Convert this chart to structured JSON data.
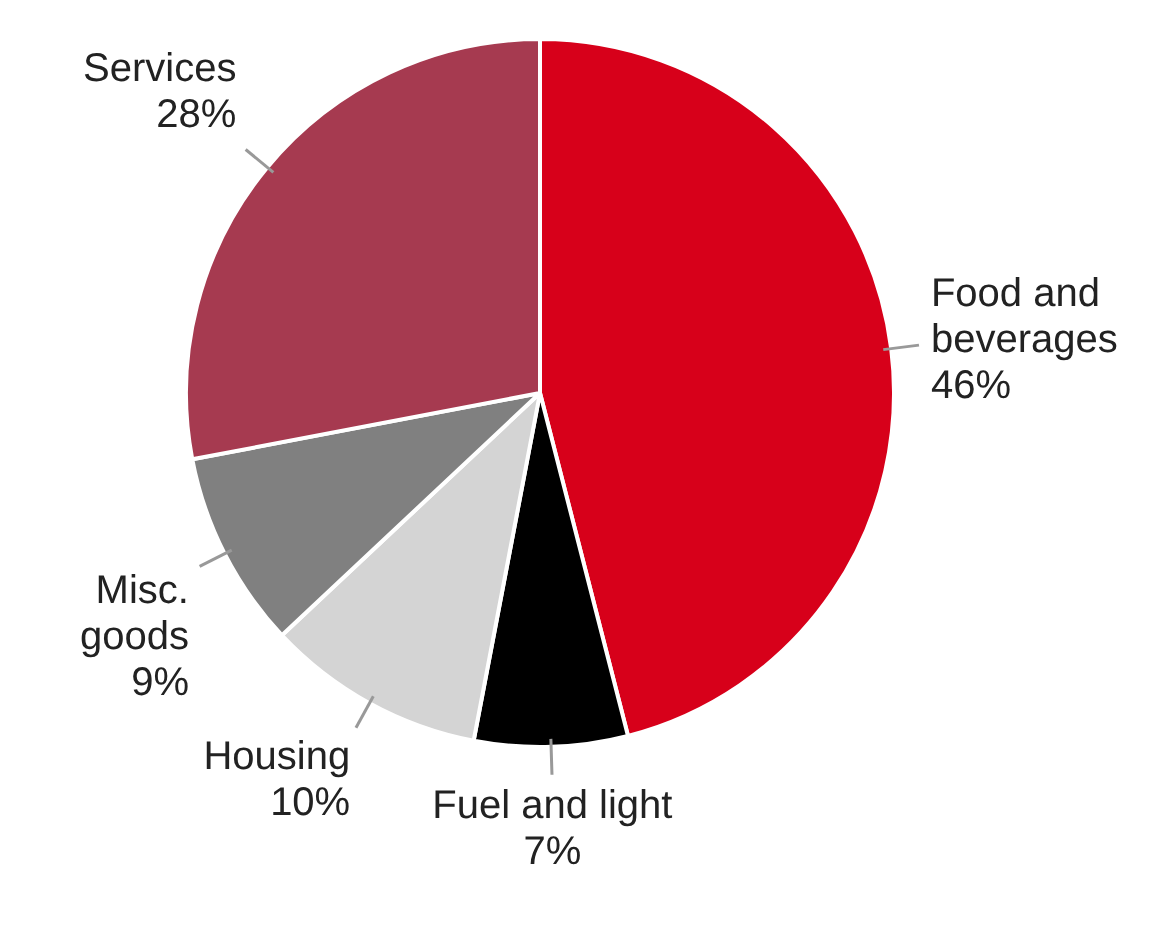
{
  "chart_data": {
    "type": "pie",
    "categories": [
      "Food and beverages",
      "Fuel and light",
      "Housing",
      "Misc. goods",
      "Services"
    ],
    "values": [
      46,
      7,
      10,
      9,
      28
    ],
    "value_labels": [
      "46%",
      "7%",
      "10%",
      "9%",
      "28%"
    ],
    "colors": [
      "#d7001a",
      "#000000",
      "#d4d4d4",
      "#808080",
      "#a63a50"
    ],
    "legend": false
  }
}
